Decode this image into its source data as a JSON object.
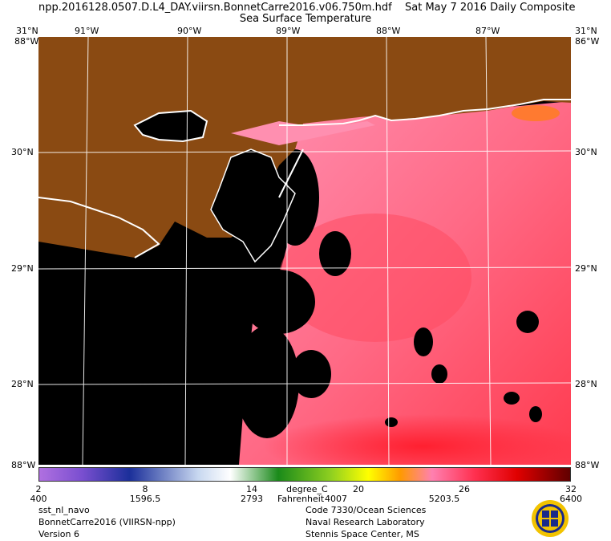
{
  "header": {
    "filename": "npp.2016128.0507.D.L4_DAY.viirsn.BonnetCarre2016.v06.750m.hdf",
    "date": "Sat May  7 2016 Daily Composite",
    "product": "Sea Surface Temperature"
  },
  "map": {
    "lon_ticks_top": [
      "91°W",
      "90°W",
      "89°W",
      "88°W",
      "87°W"
    ],
    "lat_ticks": [
      "30°N",
      "29°N",
      "28°N"
    ],
    "corner_top_left": "31°N",
    "corner_top_right": "31°N",
    "corner_top_left_lon": "88°W",
    "corner_top_right_lon": "86°W",
    "corner_bottom_left": "88°W",
    "corner_bottom_right": "88°W",
    "colors": {
      "land": "#8a4a12",
      "no_data": "#000000",
      "coast": "#ffffff",
      "water_warm": "#ff5a6e",
      "water_cool": "#ff8fb0",
      "grid": "#ffffff"
    }
  },
  "colorbar": {
    "celsius_labels": [
      "2",
      "8",
      "14",
      "20",
      "26",
      "32"
    ],
    "fahrenheit_labels": [
      "400",
      "1596.5",
      "2793",
      "4007",
      "5203.5",
      "6400"
    ],
    "unit_c": "degree_C",
    "unit_f": "Fahrenheit",
    "colors": [
      "#b070e0",
      "#7a4fd0",
      "#1b2f9a",
      "#c8d8f0",
      "#ffffff",
      "#1a8a1a",
      "#90d020",
      "#ffff00",
      "#ff9a00",
      "#ff80b0",
      "#ff3050",
      "#e00000",
      "#600000"
    ]
  },
  "footer": {
    "left": [
      "sst_nl_navo",
      "BonnetCarre2016 (VIIRSN-npp)",
      "Version 6"
    ],
    "right": [
      "Code 7330/Ocean Sciences",
      "Naval Research Laboratory",
      "Stennis Space Center, MS"
    ]
  },
  "logo": {
    "icon": "nrl-seal-icon"
  }
}
